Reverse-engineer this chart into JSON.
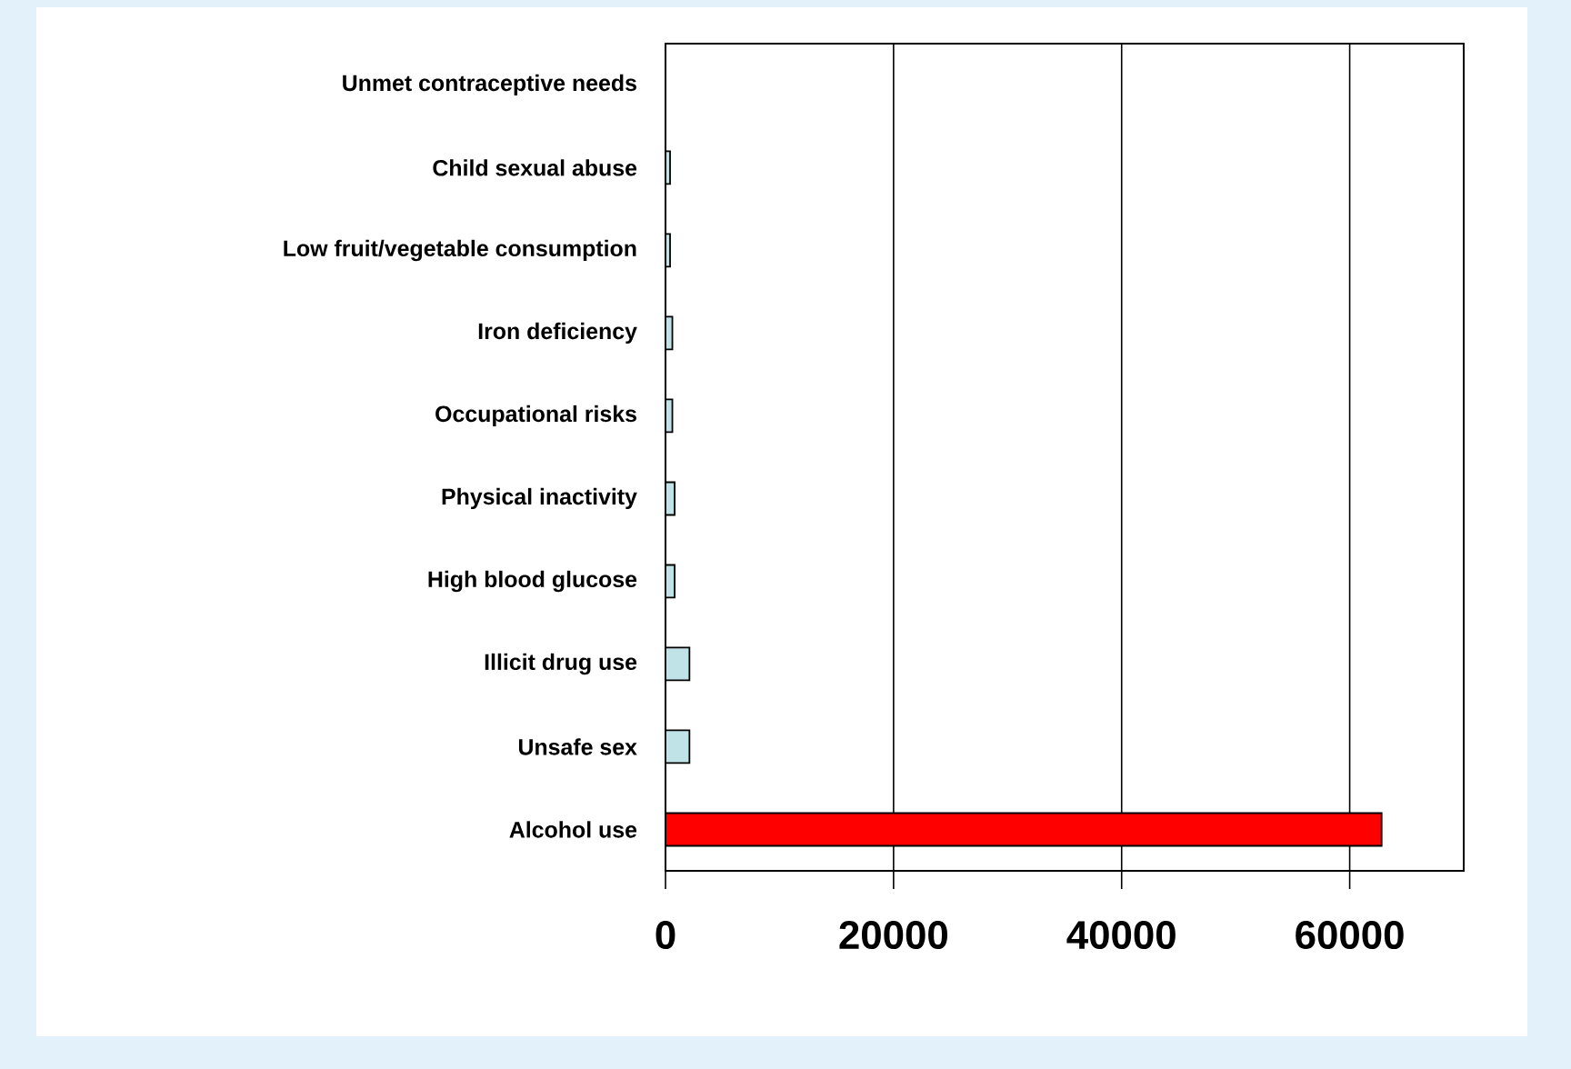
{
  "chart_data": {
    "type": "bar",
    "orientation": "horizontal",
    "categories": [
      "Unmet contraceptive needs",
      "Child sexual abuse",
      "Low fruit/vegetable consumption",
      "Iron deficiency",
      "Occupational risks",
      "Physical inactivity",
      "High blood glucose",
      "Illicit drug use",
      "Unsafe sex",
      "Alcohol use"
    ],
    "values": [
      0,
      400,
      400,
      600,
      600,
      800,
      800,
      2100,
      2100,
      62800
    ],
    "colors": [
      "#bfe3e6",
      "#bfe3e6",
      "#bfe3e6",
      "#bfe3e6",
      "#bfe3e6",
      "#bfe3e6",
      "#bfe3e6",
      "#bfe3e6",
      "#bfe3e6",
      "#ff0000"
    ],
    "xlim": [
      0,
      70000
    ],
    "xticks": [
      0,
      20000,
      40000,
      60000
    ],
    "grid": "x"
  }
}
